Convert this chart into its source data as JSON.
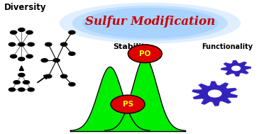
{
  "title": "Sulfur Modification",
  "title_color": "#cc0000",
  "title_glow_color": "#99ccff",
  "subtitle_stability": "Stability",
  "subtitle_functionality": "Functionality",
  "label_diversity": "Diversity",
  "bg_color": "#ffffff",
  "bell_color": "#00ee00",
  "bell_edge_color": "#000000",
  "ps_label": "PS",
  "po_label": "PO",
  "circle_color": "#dd0000",
  "circle_text_color": "#ffff00",
  "gear_color": "#3322bb",
  "node_color": "#000000"
}
